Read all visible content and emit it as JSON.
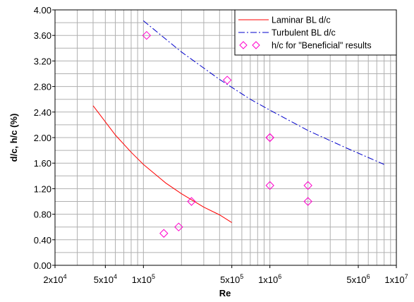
{
  "chart_data": {
    "type": "line",
    "xlabel": "Re",
    "ylabel": "d/c, h/c (%)",
    "xscale": "log",
    "xlim": [
      20000,
      10000000
    ],
    "ylim": [
      0,
      4
    ],
    "grid": true,
    "legend_position": "top-right",
    "x_tick_values": [
      20000,
      50000,
      100000,
      500000,
      1000000,
      5000000,
      10000000
    ],
    "x_tick_mantissas": [
      "2x10",
      "5x10",
      "1x10",
      "5x10",
      "1x10",
      "5x10",
      "1x10"
    ],
    "x_tick_exponents": [
      "4",
      "4",
      "5",
      "5",
      "6",
      "6",
      "7"
    ],
    "y_ticks": [
      "0.00",
      "0.40",
      "0.80",
      "1.20",
      "1.60",
      "2.00",
      "2.40",
      "2.80",
      "3.20",
      "3.60",
      "4.00"
    ],
    "y_tick_values": [
      0,
      0.4,
      0.8,
      1.2,
      1.6,
      2.0,
      2.4,
      2.8,
      3.2,
      3.6,
      4.0
    ],
    "series": [
      {
        "name": "Laminar BL d/c",
        "kind": "line",
        "color": "#ff0000",
        "style": "solid",
        "x": [
          40000,
          60000,
          80000,
          100000,
          150000,
          200000,
          300000,
          400000,
          500000
        ],
        "y": [
          2.5,
          2.04,
          1.77,
          1.58,
          1.29,
          1.12,
          0.91,
          0.79,
          0.67
        ]
      },
      {
        "name": "Turbulent BL d/c",
        "kind": "line",
        "color": "#0000cc",
        "style": "dashdot",
        "x": [
          100000,
          200000,
          400000,
          700000,
          1000000,
          2000000,
          4000000,
          8000000
        ],
        "y": [
          3.83,
          3.34,
          2.91,
          2.6,
          2.43,
          2.11,
          1.84,
          1.58
        ]
      },
      {
        "name": "h/c for \"Beneficial\" results",
        "kind": "scatter",
        "color": "#ff00cc",
        "marker": "diamond",
        "x": [
          106000,
          145000,
          190000,
          240000,
          460000,
          1000000,
          1000000,
          1000000,
          2000000,
          2000000
        ],
        "y": [
          3.6,
          0.5,
          0.6,
          1.0,
          2.9,
          2.0,
          2.0,
          1.25,
          1.25,
          1.0
        ]
      }
    ]
  }
}
